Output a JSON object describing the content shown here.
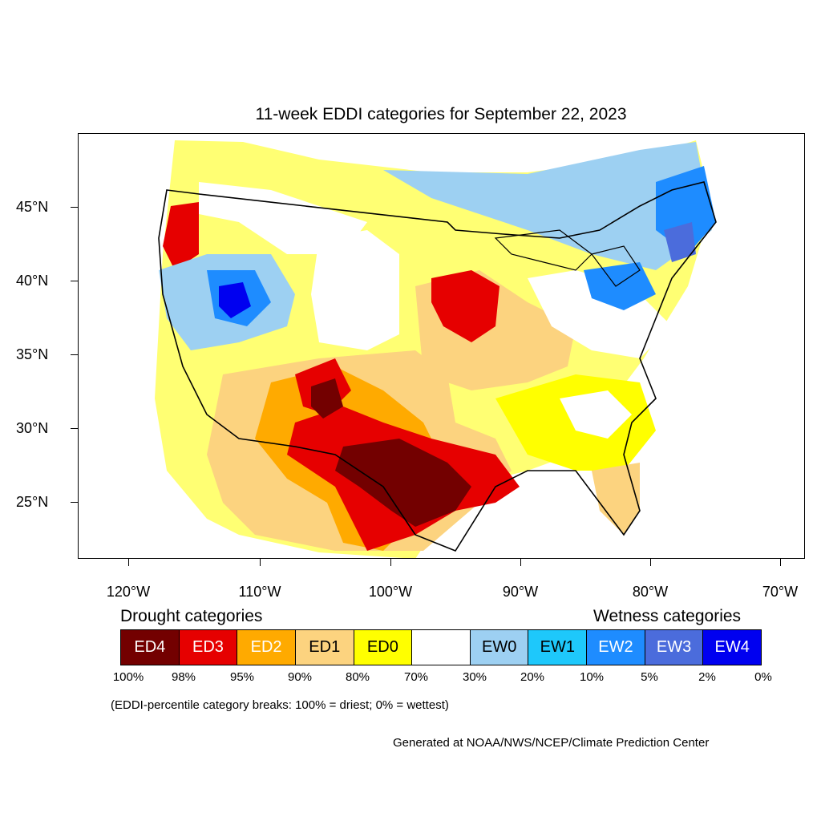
{
  "title": "11-week EDDI categories for September 22, 2023",
  "latitude_labels": [
    "45°N",
    "40°N",
    "35°N",
    "30°N",
    "25°N"
  ],
  "longitude_labels": [
    "120°W",
    "110°W",
    "100°W",
    "90°W",
    "80°W",
    "70°W"
  ],
  "legend": {
    "drought_heading": "Drought categories",
    "wetness_heading": "Wetness categories",
    "categories": [
      {
        "label": "ED4",
        "color": "#730000",
        "text_color": "#ffffff"
      },
      {
        "label": "ED3",
        "color": "#e60000",
        "text_color": "#ffffff"
      },
      {
        "label": "ED2",
        "color": "#ffaa00",
        "text_color": "#ffffff"
      },
      {
        "label": "ED1",
        "color": "#fcd37f",
        "text_color": "#000000"
      },
      {
        "label": "ED0",
        "color": "#ffff00",
        "text_color": "#000000"
      },
      {
        "label": "",
        "color": "#ffffff",
        "text_color": "#000000"
      },
      {
        "label": "EW0",
        "color": "#9dd0f2",
        "text_color": "#000000"
      },
      {
        "label": "EW1",
        "color": "#1ec8fb",
        "text_color": "#000000"
      },
      {
        "label": "EW2",
        "color": "#1e8cff",
        "text_color": "#ffffff"
      },
      {
        "label": "EW3",
        "color": "#4b6cdc",
        "text_color": "#ffffff"
      },
      {
        "label": "EW4",
        "color": "#0000f0",
        "text_color": "#ffffff"
      }
    ],
    "percentiles": [
      "100%",
      "98%",
      "95%",
      "90%",
      "80%",
      "70%",
      "30%",
      "20%",
      "10%",
      "5%",
      "2%",
      "0%"
    ]
  },
  "note": "(EDDI-percentile category breaks: 100% = driest; 0% = wettest)",
  "credit": "Generated at NOAA/NWS/NCEP/Climate Prediction Center"
}
